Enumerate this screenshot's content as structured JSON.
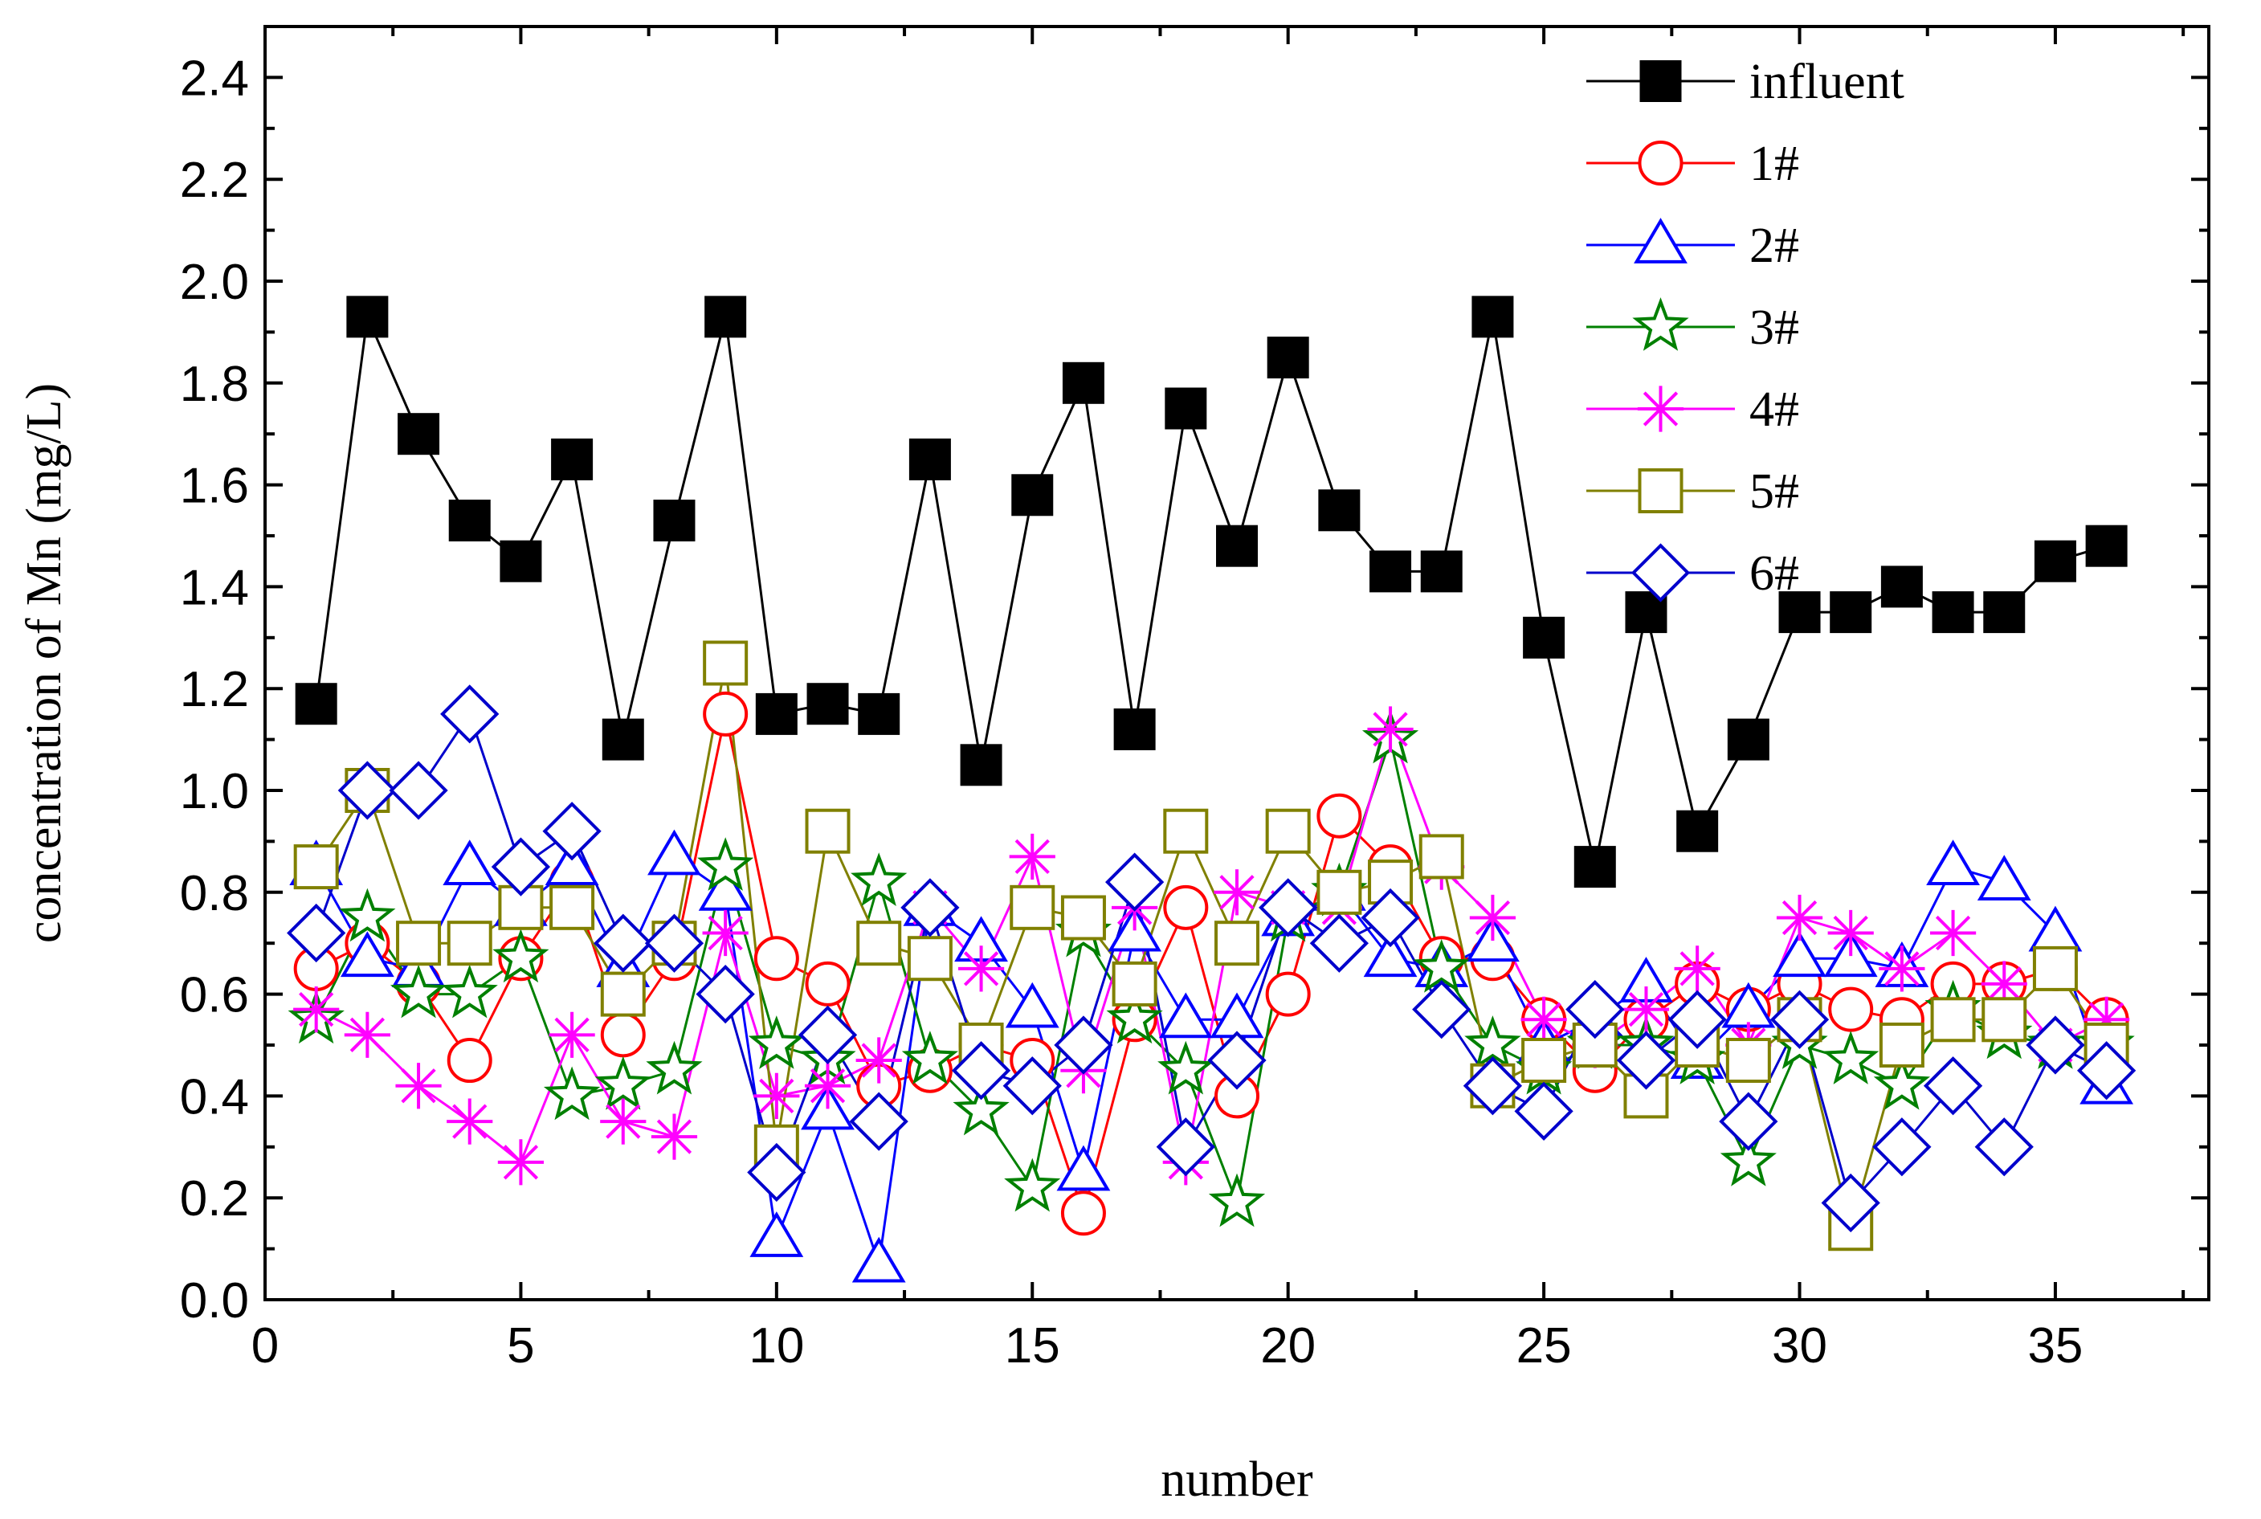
{
  "chart_data": {
    "type": "line",
    "title": "",
    "xlabel": "number",
    "ylabel": "concentration of Mn (mg/L)",
    "xlim": [
      0,
      38
    ],
    "ylim": [
      0,
      2.5
    ],
    "xticks": [
      0,
      5,
      10,
      15,
      20,
      25,
      30,
      35
    ],
    "yticks": [
      0.0,
      0.2,
      0.4,
      0.6,
      0.8,
      1.0,
      1.2,
      1.4,
      1.6,
      1.8,
      2.0,
      2.2,
      2.4
    ],
    "xtick_labels": [
      "0",
      "5",
      "10",
      "15",
      "20",
      "25",
      "30",
      "35"
    ],
    "ytick_labels": [
      "0.0",
      "0.2",
      "0.4",
      "0.6",
      "0.8",
      "1.0",
      "1.2",
      "1.4",
      "1.6",
      "1.8",
      "2.0",
      "2.2",
      "2.4"
    ],
    "grid": false,
    "legend_position": "top-right",
    "x": [
      1,
      2,
      3,
      4,
      5,
      6,
      7,
      8,
      9,
      10,
      11,
      12,
      13,
      14,
      15,
      16,
      17,
      18,
      19,
      20,
      21,
      22,
      23,
      24,
      25,
      26,
      27,
      28,
      29,
      30,
      31,
      32,
      33,
      34,
      35,
      36
    ],
    "series": [
      {
        "name": "influent",
        "color": "#000000",
        "marker": "filled-square",
        "values": [
          1.17,
          1.93,
          1.7,
          1.53,
          1.45,
          1.65,
          1.1,
          1.53,
          1.93,
          1.15,
          1.17,
          1.15,
          1.65,
          1.05,
          1.58,
          1.8,
          1.12,
          1.75,
          1.48,
          1.85,
          1.55,
          1.43,
          1.43,
          1.93,
          1.3,
          0.85,
          1.35,
          0.92,
          1.1,
          1.35,
          1.35,
          1.4,
          1.35,
          1.35,
          1.45,
          1.48
        ]
      },
      {
        "name": "1#",
        "color": "#ff0000",
        "marker": "circle",
        "values": [
          0.65,
          0.7,
          0.62,
          0.47,
          0.67,
          0.82,
          0.52,
          0.67,
          1.15,
          0.67,
          0.62,
          0.42,
          0.45,
          0.5,
          0.47,
          0.17,
          0.55,
          0.77,
          0.4,
          0.6,
          0.95,
          0.85,
          0.67,
          0.67,
          0.55,
          0.45,
          0.55,
          0.62,
          0.57,
          0.62,
          0.57,
          0.55,
          0.62,
          0.62,
          0.65,
          0.55
        ]
      },
      {
        "name": "2#",
        "color": "#0000ff",
        "marker": "triangle",
        "values": [
          0.85,
          0.67,
          0.65,
          0.85,
          0.77,
          0.85,
          0.65,
          0.87,
          0.8,
          0.12,
          0.37,
          0.07,
          0.77,
          0.7,
          0.57,
          0.25,
          0.72,
          0.55,
          0.55,
          0.75,
          0.8,
          0.67,
          0.65,
          0.7,
          0.5,
          0.55,
          0.62,
          0.47,
          0.57,
          0.67,
          0.67,
          0.65,
          0.85,
          0.82,
          0.72,
          0.42
        ]
      },
      {
        "name": "3#",
        "color": "#008000",
        "marker": "star",
        "values": [
          0.55,
          0.75,
          0.6,
          0.6,
          0.67,
          0.4,
          0.42,
          0.45,
          0.85,
          0.5,
          0.47,
          0.82,
          0.47,
          0.37,
          0.22,
          0.72,
          0.55,
          0.45,
          0.19,
          0.75,
          0.8,
          1.1,
          0.65,
          0.5,
          0.45,
          0.5,
          0.5,
          0.47,
          0.27,
          0.5,
          0.47,
          0.42,
          0.57,
          0.52,
          0.5,
          0.5
        ]
      },
      {
        "name": "4#",
        "color": "#ff00ff",
        "marker": "asterisk",
        "values": [
          0.57,
          0.52,
          0.42,
          0.35,
          0.27,
          0.52,
          0.35,
          0.32,
          0.72,
          0.4,
          0.42,
          0.47,
          0.77,
          0.65,
          0.87,
          0.45,
          0.77,
          0.27,
          0.8,
          0.77,
          0.77,
          1.12,
          0.85,
          0.75,
          0.55,
          0.5,
          0.57,
          0.65,
          0.5,
          0.75,
          0.72,
          0.65,
          0.72,
          0.62,
          0.5,
          0.55
        ]
      },
      {
        "name": "5#",
        "color": "#808000",
        "marker": "square",
        "values": [
          0.85,
          1.0,
          0.7,
          0.7,
          0.77,
          0.77,
          0.6,
          0.7,
          1.25,
          0.3,
          0.92,
          0.7,
          0.67,
          0.5,
          0.77,
          0.75,
          0.62,
          0.92,
          0.7,
          0.92,
          0.8,
          0.82,
          0.87,
          0.42,
          0.47,
          0.5,
          0.4,
          0.5,
          0.47,
          0.55,
          0.14,
          0.5,
          0.55,
          0.55,
          0.65,
          0.5
        ]
      },
      {
        "name": "6#",
        "color": "#0000cc",
        "marker": "diamond",
        "values": [
          0.72,
          1.0,
          1.0,
          1.15,
          0.85,
          0.92,
          0.7,
          0.7,
          0.6,
          0.25,
          0.52,
          0.35,
          0.77,
          0.45,
          0.42,
          0.5,
          0.82,
          0.3,
          0.47,
          0.77,
          0.7,
          0.75,
          0.57,
          0.42,
          0.37,
          0.57,
          0.47,
          0.55,
          0.35,
          0.55,
          0.19,
          0.3,
          0.42,
          0.3,
          0.5,
          0.45
        ]
      }
    ]
  }
}
